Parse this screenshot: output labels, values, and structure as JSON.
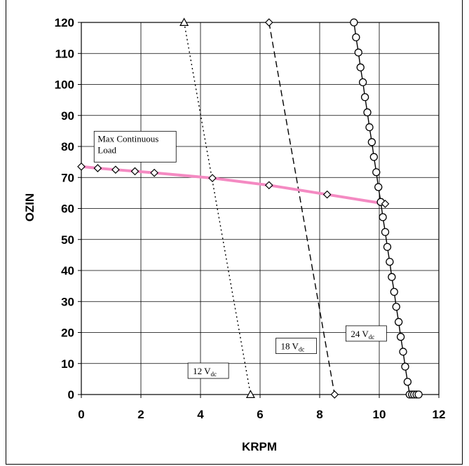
{
  "chart_data": {
    "type": "line",
    "xlabel": "KRPM",
    "ylabel": "OZIN",
    "xlim": [
      0,
      12
    ],
    "ylim": [
      0,
      120
    ],
    "xticks": [
      0,
      2,
      4,
      6,
      8,
      10,
      12
    ],
    "yticks": [
      0,
      10,
      20,
      30,
      40,
      50,
      60,
      70,
      80,
      90,
      100,
      110,
      120
    ],
    "grid": true,
    "series": [
      {
        "name": "12 V",
        "name_sub": "dc",
        "style": "dotted",
        "marker": "triangle",
        "color": "#000000",
        "x": [
          3.45,
          5.68
        ],
        "y": [
          120,
          0
        ]
      },
      {
        "name": "18 V",
        "name_sub": "dc",
        "style": "dashed",
        "marker": "diamond",
        "color": "#000000",
        "x": [
          6.3,
          8.5
        ],
        "y": [
          120,
          0
        ]
      },
      {
        "name": "24 V",
        "name_sub": "dc",
        "style": "solid",
        "marker": "circle",
        "color": "#000000",
        "x": [
          9.15,
          9.22,
          9.3,
          9.37,
          9.45,
          9.52,
          9.6,
          9.67,
          9.75,
          9.82,
          9.9,
          9.97,
          10.05,
          10.12,
          10.2,
          10.27,
          10.35,
          10.42,
          10.5,
          10.57,
          10.65,
          10.72,
          10.8,
          10.87,
          10.95,
          11.02,
          11.1,
          11.17,
          11.25,
          11.32
        ],
        "y": [
          120,
          115.2,
          110.3,
          105.5,
          100.7,
          95.9,
          91.0,
          86.2,
          81.4,
          76.6,
          71.7,
          66.9,
          62.1,
          57.2,
          52.4,
          47.6,
          42.8,
          37.9,
          33.1,
          28.3,
          23.4,
          18.6,
          13.8,
          9.0,
          4.1,
          0,
          0,
          0,
          0,
          0
        ]
      },
      {
        "name": "Max Continuous Load",
        "style": "solid",
        "marker": "diamond",
        "color": "#f48ac2",
        "x": [
          0,
          0.55,
          1.15,
          1.8,
          2.45,
          4.4,
          6.3,
          8.25,
          10.2
        ],
        "y": [
          73.5,
          73,
          72.5,
          72,
          71.5,
          69.8,
          67.5,
          64.5,
          61.5
        ]
      }
    ],
    "annotations": [
      {
        "text": "Max Continuous",
        "text2": "Load",
        "x": 0.5,
        "y": 84
      },
      {
        "text": "12 V",
        "sub": "dc",
        "x": 3.65,
        "y": 7
      },
      {
        "text": "18 V",
        "sub": "dc",
        "x": 6.6,
        "y": 15
      },
      {
        "text": "24 V",
        "sub": "dc",
        "x": 8.95,
        "y": 19
      }
    ]
  }
}
